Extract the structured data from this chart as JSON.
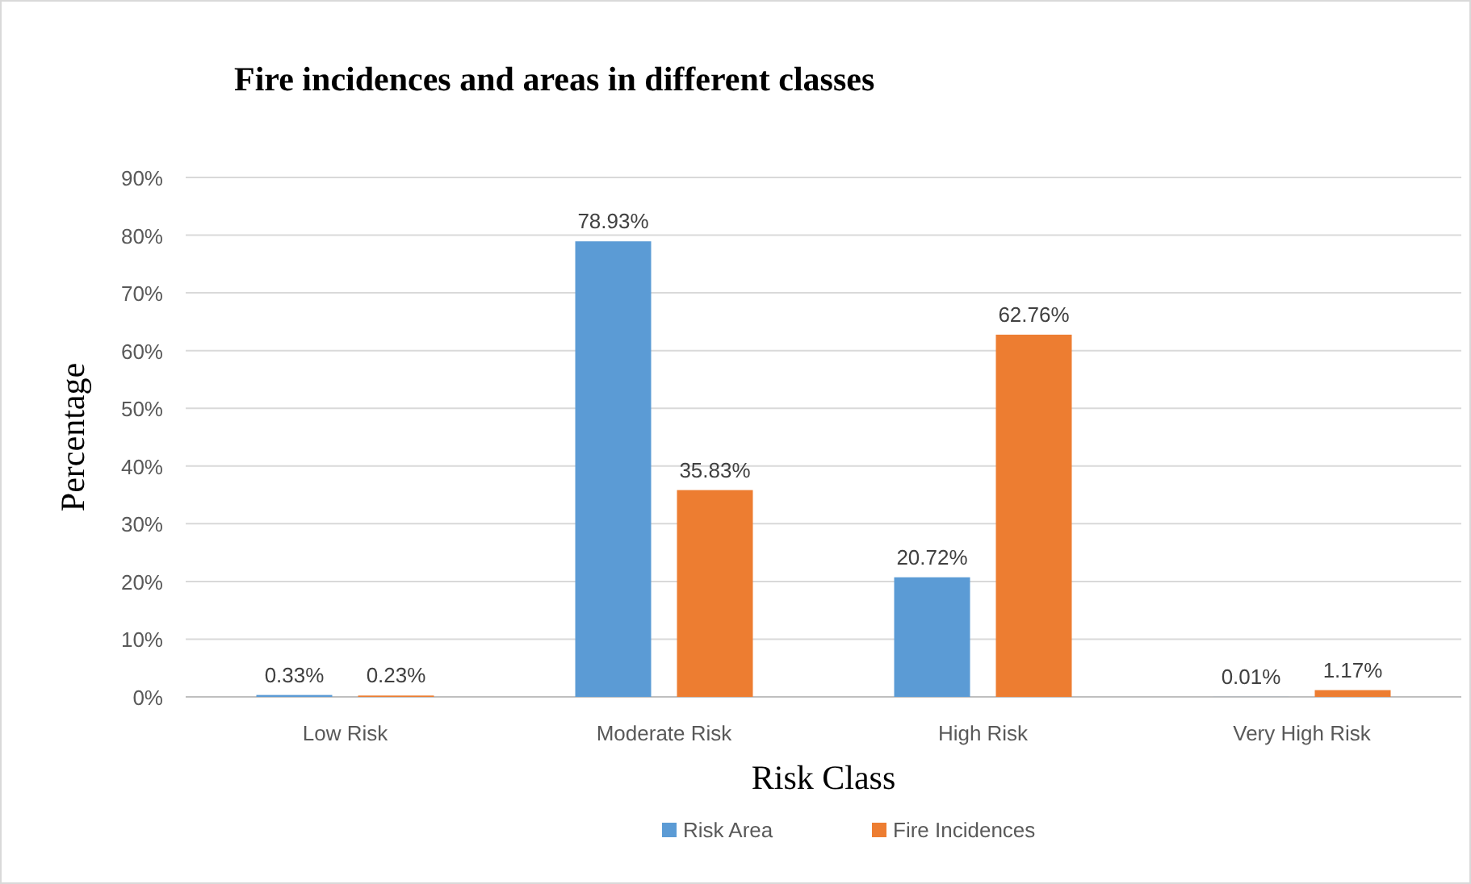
{
  "chart_data": {
    "type": "bar",
    "title": "Fire incidences and areas in different classes",
    "xlabel": "Risk Class",
    "ylabel": "Percentage",
    "categories": [
      "Low Risk",
      "Moderate Risk",
      "High Risk",
      "Very High Risk"
    ],
    "series": [
      {
        "name": "Risk Area",
        "color": "#5b9bd5",
        "values": [
          0.33,
          78.93,
          20.72,
          0.01
        ],
        "value_labels": [
          "0.33%",
          "78.93%",
          "20.72%",
          "0.01%"
        ]
      },
      {
        "name": "Fire Incidences",
        "color": "#ed7d31",
        "values": [
          0.23,
          35.83,
          62.76,
          1.17
        ],
        "value_labels": [
          "0.23%",
          "35.83%",
          "62.76%",
          "1.17%"
        ]
      }
    ],
    "ylim": [
      0,
      90
    ],
    "yticks": [
      {
        "value": 0,
        "label": "0%"
      },
      {
        "value": 10,
        "label": "10%"
      },
      {
        "value": 20,
        "label": "20%"
      },
      {
        "value": 30,
        "label": "30%"
      },
      {
        "value": 40,
        "label": "40%"
      },
      {
        "value": 50,
        "label": "50%"
      },
      {
        "value": 60,
        "label": "60%"
      },
      {
        "value": 70,
        "label": "70%"
      },
      {
        "value": 80,
        "label": "80%"
      },
      {
        "value": 90,
        "label": "90%"
      }
    ],
    "grid": "y",
    "legend": "bottom"
  }
}
